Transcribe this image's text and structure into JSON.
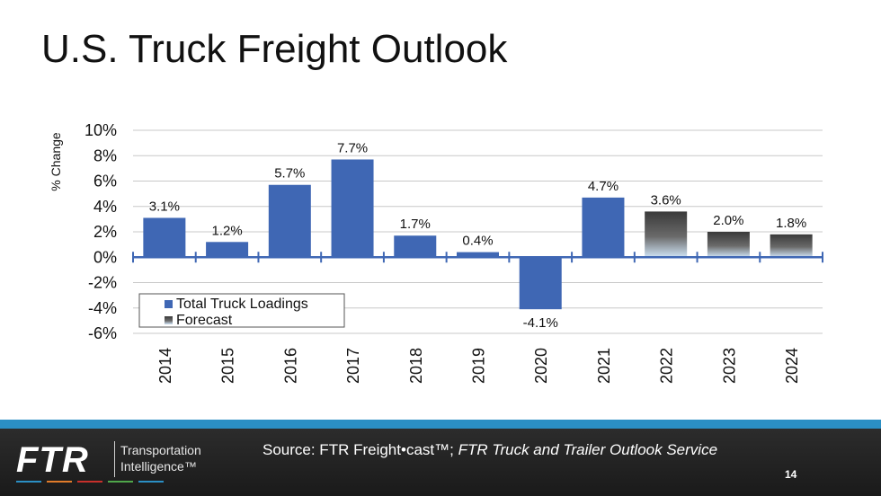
{
  "slide": {
    "title": "U.S. Truck Freight Outlook"
  },
  "chart_data": {
    "type": "bar",
    "title": "U.S. Truck Freight Outlook",
    "ylabel": "% Change",
    "xlabel": "",
    "ylim": [
      -6,
      10
    ],
    "yticks": [
      10,
      8,
      6,
      4,
      2,
      0,
      -2,
      -4,
      -6
    ],
    "ytick_labels": [
      "10%",
      "8%",
      "6%",
      "4%",
      "2%",
      "0%",
      "-2%",
      "-4%",
      "-6%"
    ],
    "grid": true,
    "legend_position": "bottom-left",
    "categories": [
      "2014",
      "2015",
      "2016",
      "2017",
      "2018",
      "2019",
      "2020",
      "2021",
      "2022",
      "2023",
      "2024"
    ],
    "series": [
      {
        "name": "Total Truck Loadings",
        "color": "#3f67b4",
        "values": [
          3.1,
          1.2,
          5.7,
          7.7,
          1.7,
          0.4,
          -4.1,
          4.7,
          null,
          null,
          null
        ]
      },
      {
        "name": "Forecast",
        "color": "#3a3a3a",
        "values": [
          null,
          null,
          null,
          null,
          null,
          null,
          null,
          null,
          3.6,
          2.0,
          1.8
        ]
      }
    ],
    "data_labels": [
      "3.1%",
      "1.2%",
      "5.7%",
      "7.7%",
      "1.7%",
      "0.4%",
      "-4.1%",
      "4.7%",
      "3.6%",
      "2.0%",
      "1.8%"
    ]
  },
  "footer": {
    "logo_text": "FTR",
    "logo_line1": "Transportation",
    "logo_line2": "Intelligence™",
    "source_prefix": "Source: FTR Freight•cast™; ",
    "source_italic": "FTR Truck and Trailer Outlook Service",
    "page_number": "14",
    "stripe_color": "#2b8fc4",
    "logo_bar_colors": [
      "#2b8fc4",
      "#e07b2a",
      "#c7302b",
      "#4fa64a",
      "#2b8fc4"
    ]
  }
}
